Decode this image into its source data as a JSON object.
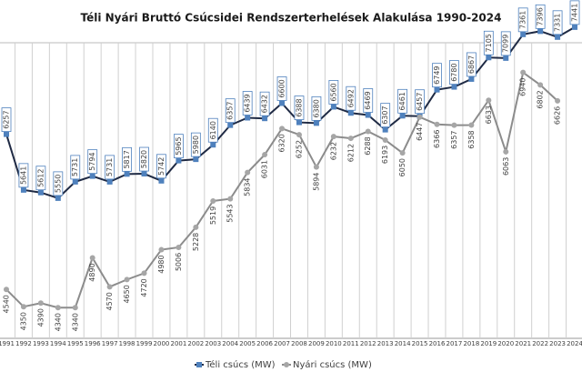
{
  "chart_data": {
    "type": "line",
    "title": "Téli Nyári Bruttó Csúcsidei Rendszerterhelések Alakulása 1990-2024",
    "categories": [
      "1991",
      "1992",
      "1993",
      "1994",
      "1995",
      "1996",
      "1997",
      "1998",
      "1999",
      "2000",
      "2001",
      "2002",
      "2003",
      "2004",
      "2005",
      "2006",
      "2007",
      "2008",
      "2009",
      "2010",
      "2011",
      "2012",
      "2013",
      "2014",
      "2015",
      "2016",
      "2017",
      "2018",
      "2019",
      "2020",
      "2021",
      "2022",
      "2023",
      "2024"
    ],
    "series": [
      {
        "name": "Téli csúcs (MW)",
        "color": "#4f81bd",
        "line_color": "#1f2a44",
        "values": [
          6257,
          5641,
          5612,
          5550,
          5731,
          5794,
          5731,
          5817,
          5820,
          5742,
          5965,
          5980,
          6140,
          6357,
          6439,
          6432,
          6600,
          6388,
          6380,
          6560,
          6492,
          6469,
          6307,
          6461,
          6457,
          6749,
          6780,
          6867,
          7105,
          7099,
          7361,
          7396,
          7331,
          7441
        ]
      },
      {
        "name": "Nyári csúcs (MW)",
        "color": "#a6a6a6",
        "line_color": "#8c8c8c",
        "values": [
          4540,
          4350,
          4390,
          4340,
          4340,
          4890,
          4570,
          4650,
          4720,
          4980,
          5006,
          5228,
          5519,
          5543,
          5834,
          6031,
          6320,
          6252,
          5894,
          6232,
          6212,
          6288,
          6193,
          6050,
          6447,
          6366,
          6357,
          6358,
          6633,
          6063,
          6940,
          6802,
          6626,
          null
        ]
      }
    ],
    "ylim": [
      4000,
      7500
    ],
    "grid": true,
    "legend": "bottom"
  }
}
